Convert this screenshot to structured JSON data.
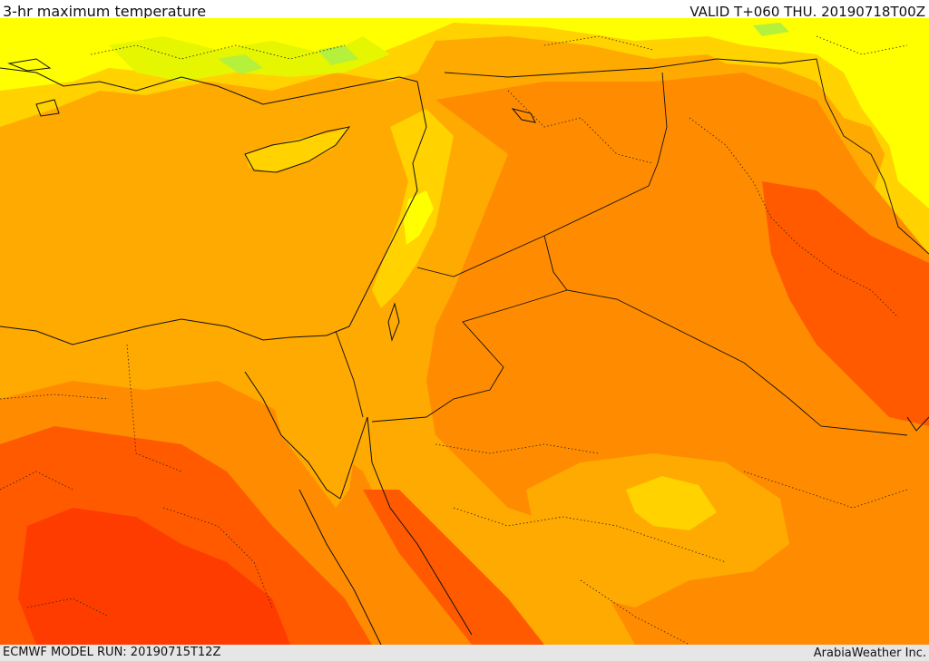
{
  "header": {
    "title": "3-hr maximum temperature",
    "valid": "VALID T+060 THU. 20190718T00Z"
  },
  "footer": {
    "model_run": "ECMWF MODEL RUN: 20190715T12Z",
    "credit": "ArabiaWeather Inc."
  },
  "colors": {
    "cool_green": "#b4f03c",
    "yellow_green": "#e6f500",
    "yellow": "#ffff00",
    "light_orange": "#ffd200",
    "orange": "#ffaa00",
    "deep_orange": "#ff8c00",
    "red_orange": "#ff5a00",
    "red": "#ff3c00",
    "sea": "#ffaa00"
  }
}
